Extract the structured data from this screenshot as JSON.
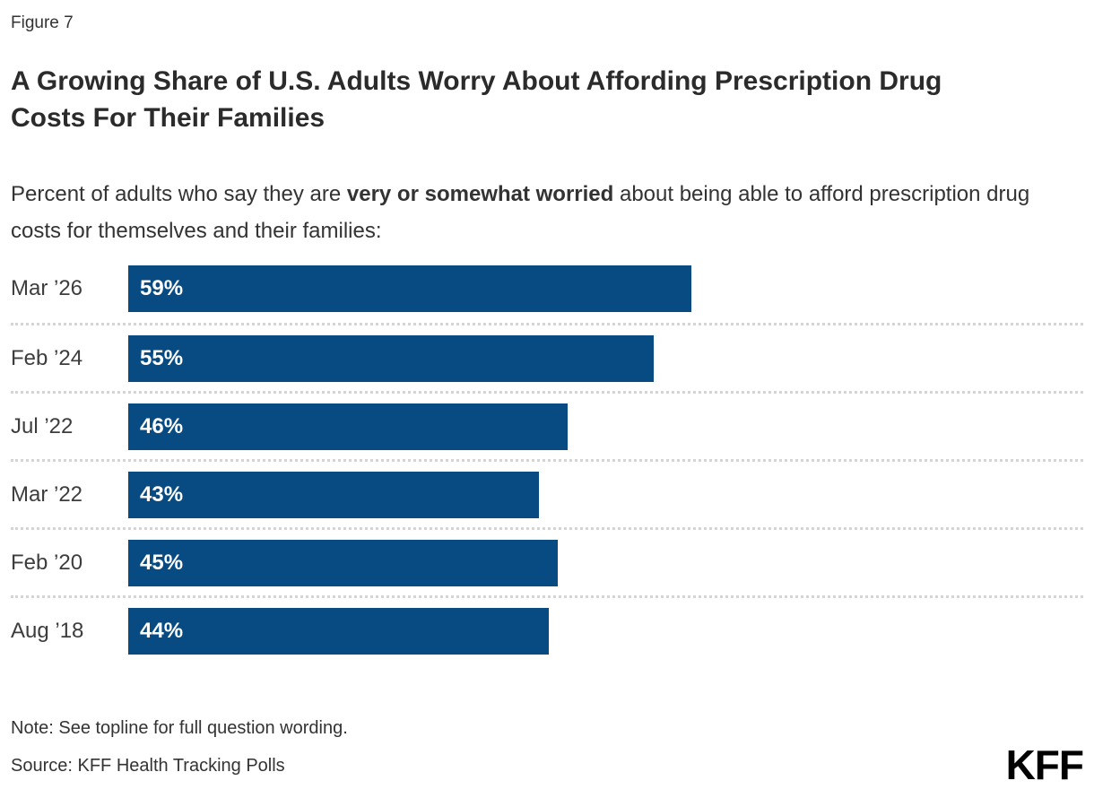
{
  "figure_label": "Figure 7",
  "title": "A Growing Share of U.S. Adults Worry About Affording Prescription Drug Costs For Their Families",
  "subtitle": {
    "prefix": "Percent of adults who say they are ",
    "bold": "very or somewhat worried",
    "suffix": " about being able to afford prescription drug costs for themselves and their families:"
  },
  "chart_data": {
    "type": "bar",
    "orientation": "horizontal",
    "title": "A Growing Share of U.S. Adults Worry About Affording Prescription Drug Costs For Their Families",
    "categories": [
      "Mar ’26",
      "Feb ’24",
      "Jul ’22",
      "Mar ’22",
      "Feb ’20",
      "Aug ’18"
    ],
    "values": [
      59,
      55,
      46,
      43,
      45,
      44
    ],
    "value_suffix": "%",
    "xlim": [
      0,
      100
    ],
    "bar_color": "#084B83",
    "value_label_color": "#ffffff",
    "grid": "dotted row separators",
    "legend": "none"
  },
  "note": "Note: See topline for full question wording.",
  "source": "Source: KFF Health Tracking Polls",
  "logo_text": "KFF"
}
